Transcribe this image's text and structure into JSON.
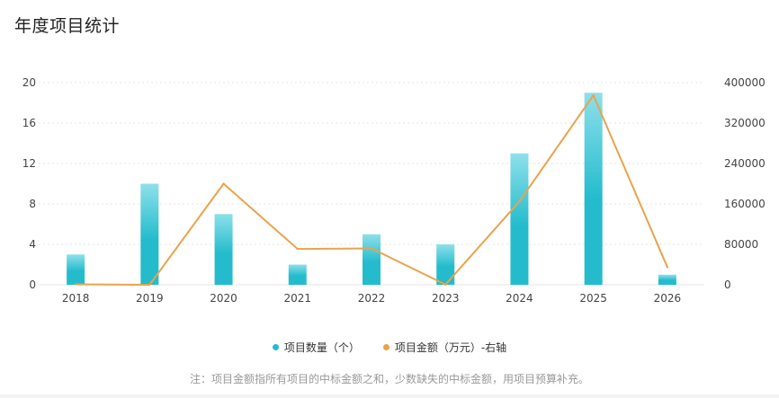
{
  "title": "年度项目统计",
  "legend": {
    "count_label": "项目数量（个）",
    "amount_label": "项目金额（万元）-右轴"
  },
  "note": "注：项目金额指所有项目的中标金额之和，少数缺失的中标金额，用项目预算补充。",
  "colors": {
    "bar_top": "#8ee0ea",
    "bar_bottom": "#24bccd",
    "line": "#eaa34a",
    "grid": "#e6e6e6"
  },
  "chart_data": {
    "type": "bar",
    "categories": [
      "2018",
      "2019",
      "2020",
      "2021",
      "2022",
      "2023",
      "2024",
      "2025",
      "2026"
    ],
    "series": [
      {
        "name": "项目数量（个）",
        "type": "bar",
        "axis": "left",
        "values": [
          3,
          10,
          7,
          2,
          5,
          4,
          13,
          19,
          1
        ]
      },
      {
        "name": "项目金额（万元）-右轴",
        "type": "line",
        "axis": "right",
        "values": [
          800,
          0,
          200000,
          71000,
          72000,
          500,
          165000,
          375000,
          35000
        ]
      }
    ],
    "y_left": {
      "min": 0,
      "max": 20,
      "ticks": [
        0,
        4,
        8,
        12,
        16,
        20
      ]
    },
    "y_right": {
      "min": 0,
      "max": 400000,
      "ticks": [
        0,
        80000,
        160000,
        240000,
        320000,
        400000
      ]
    },
    "grid": true,
    "legend_position": "bottom"
  }
}
